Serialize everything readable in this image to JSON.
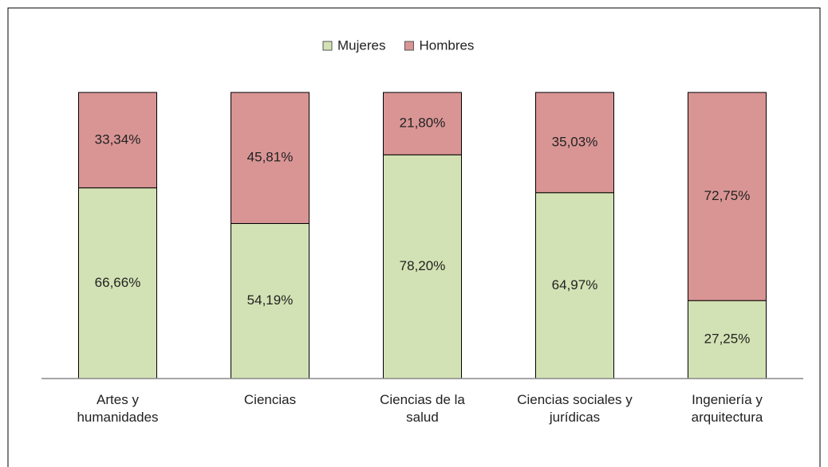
{
  "chart_data": {
    "type": "stacked_bar",
    "categories": [
      "Artes y\nhumanidades",
      "Ciencias",
      "Ciencias de la\nsalud",
      "Ciencias sociales y\njurídicas",
      "Ingeniería y\narquitectura"
    ],
    "series": [
      {
        "name": "Mujeres",
        "color": "#d3e2b4",
        "values": [
          66.66,
          54.19,
          78.2,
          64.97,
          27.25
        ],
        "value_labels": [
          "66,66%",
          "54,19%",
          "78,20%",
          "64,97%",
          "27,25%"
        ]
      },
      {
        "name": "Hombres",
        "color": "#d99594",
        "values": [
          33.34,
          45.81,
          21.8,
          35.03,
          72.75
        ],
        "value_labels": [
          "33,34%",
          "45,81%",
          "21,80%",
          "35,03%",
          "72,75%"
        ]
      }
    ],
    "ylim": [
      0,
      100
    ],
    "legend": "top"
  }
}
